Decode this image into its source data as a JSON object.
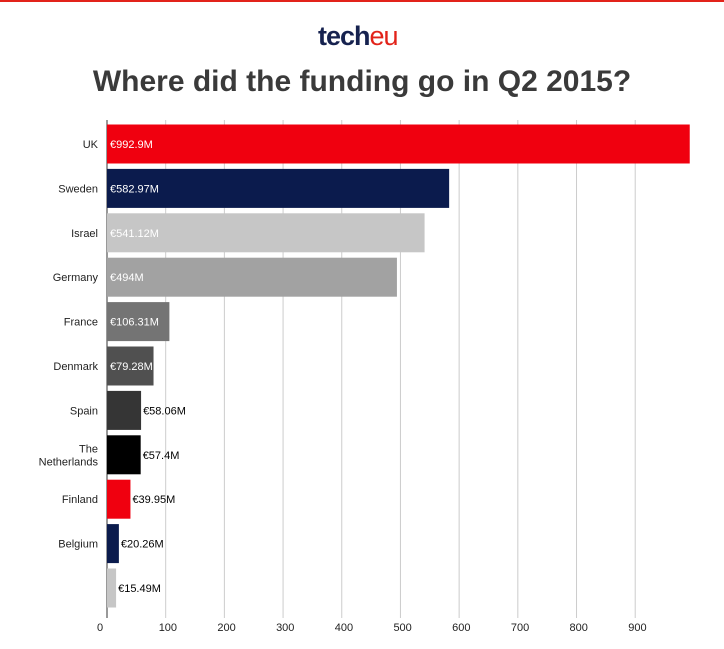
{
  "logo": {
    "tech": "tech",
    "eu": "eu",
    "color_tech": "#16224f",
    "color_eu": "#e2231a"
  },
  "chart_data": {
    "type": "bar",
    "orientation": "horizontal",
    "title": "Where did the funding go in Q2 2015?",
    "xlabel": "",
    "ylabel": "",
    "xlim": [
      0,
      1000
    ],
    "grid": true,
    "xticks": [
      0,
      100,
      200,
      300,
      400,
      500,
      600,
      700,
      800,
      900
    ],
    "xtick_labels": [
      "0",
      "100",
      "200",
      "300",
      "400",
      "500",
      "600",
      "700",
      "800",
      "900"
    ],
    "categories": [
      {
        "lines": [
          "UK"
        ]
      },
      {
        "lines": [
          "Sweden"
        ]
      },
      {
        "lines": [
          "Israel"
        ]
      },
      {
        "lines": [
          "Germany"
        ]
      },
      {
        "lines": [
          "France"
        ]
      },
      {
        "lines": [
          "Denmark"
        ]
      },
      {
        "lines": [
          "Spain"
        ]
      },
      {
        "lines": [
          "The",
          "Netherlands"
        ]
      },
      {
        "lines": [
          "Finland"
        ]
      },
      {
        "lines": [
          "Belgium"
        ]
      },
      {
        "lines": [
          ""
        ]
      }
    ],
    "values": [
      992.9,
      582.97,
      541.12,
      494,
      106.31,
      79.28,
      58.06,
      57.4,
      39.95,
      20.26,
      15.49
    ],
    "data_labels": [
      "€992.9M",
      "€582.97M",
      "€541.12M",
      "€494M",
      "€106.31M",
      "€79.28M",
      "€58.06M",
      "€57.4M",
      "€39.95M",
      "€20.26M",
      "€15.49M"
    ],
    "colors": [
      "#f0000f",
      "#0b1b4d",
      "#c6c6c6",
      "#a2a2a2",
      "#747474",
      "#505050",
      "#353535",
      "#000000",
      "#f0000f",
      "#0b1b4d",
      "#c6c6c6"
    ],
    "label_inside": [
      true,
      true,
      true,
      true,
      true,
      true,
      false,
      false,
      false,
      false,
      false
    ],
    "label_colors": [
      "#ffffff",
      "#ffffff",
      "#ffffff",
      "#ffffff",
      "#ffffff",
      "#ffffff",
      "#000000",
      "#000000",
      "#000000",
      "#000000",
      "#000000"
    ]
  }
}
